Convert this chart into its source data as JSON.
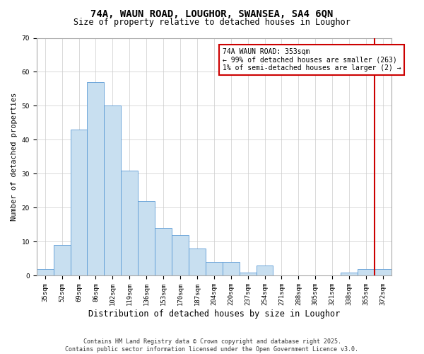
{
  "title": "74A, WAUN ROAD, LOUGHOR, SWANSEA, SA4 6QN",
  "subtitle": "Size of property relative to detached houses in Loughor",
  "xlabel": "Distribution of detached houses by size in Loughor",
  "ylabel": "Number of detached properties",
  "categories": [
    "35sqm",
    "52sqm",
    "69sqm",
    "86sqm",
    "102sqm",
    "119sqm",
    "136sqm",
    "153sqm",
    "170sqm",
    "187sqm",
    "204sqm",
    "220sqm",
    "237sqm",
    "254sqm",
    "271sqm",
    "288sqm",
    "305sqm",
    "321sqm",
    "338sqm",
    "355sqm",
    "372sqm"
  ],
  "values": [
    2,
    9,
    43,
    57,
    50,
    31,
    22,
    14,
    12,
    8,
    4,
    4,
    1,
    3,
    0,
    0,
    0,
    0,
    1,
    2,
    2
  ],
  "bar_color": "#c8dff0",
  "bar_edge_color": "#5b9bd5",
  "vline_x_index": 19,
  "vline_color": "#cc0000",
  "annotation_text": "74A WAUN ROAD: 353sqm\n← 99% of detached houses are smaller (263)\n1% of semi-detached houses are larger (2) →",
  "annotation_box_color": "#cc0000",
  "ylim": [
    0,
    70
  ],
  "yticks": [
    0,
    10,
    20,
    30,
    40,
    50,
    60,
    70
  ],
  "footer": "Contains HM Land Registry data © Crown copyright and database right 2025.\nContains public sector information licensed under the Open Government Licence v3.0.",
  "title_fontsize": 10,
  "subtitle_fontsize": 8.5,
  "xlabel_fontsize": 8.5,
  "ylabel_fontsize": 7.5,
  "tick_fontsize": 6.5,
  "footer_fontsize": 6.0,
  "ann_fontsize": 7.0
}
